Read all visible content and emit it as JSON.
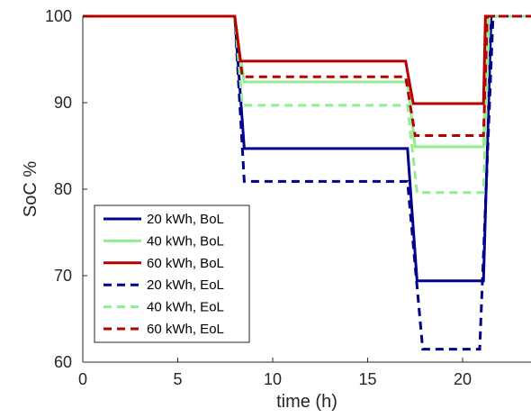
{
  "chart_data": {
    "type": "line",
    "xlabel": "time (h)",
    "ylabel": "SoC %",
    "xlim": [
      0,
      23.6
    ],
    "ylim": [
      60,
      100
    ],
    "xticks": [
      0,
      5,
      10,
      15,
      20
    ],
    "yticks": [
      60,
      70,
      80,
      90,
      100
    ],
    "xtick_labels": [
      "0",
      "5",
      "10",
      "15",
      "20"
    ],
    "ytick_labels": [
      "60",
      "70",
      "80",
      "90",
      "100"
    ],
    "grid": false,
    "legend_position": "bottom-left",
    "series": [
      {
        "name": "20 kWh, BoL",
        "color": "#00008b",
        "dash": "solid",
        "x": [
          0,
          8,
          8.5,
          17.1,
          17.6,
          21.1,
          21.5,
          23.6
        ],
        "y": [
          100,
          100,
          84.7,
          84.7,
          69.4,
          69.4,
          100,
          100
        ]
      },
      {
        "name": "40 kWh, BoL",
        "color": "#90ee90",
        "dash": "solid",
        "x": [
          0,
          8,
          8.5,
          17.1,
          17.5,
          21.1,
          21.3,
          23.6
        ],
        "y": [
          100,
          100,
          92.4,
          92.4,
          84.9,
          84.9,
          100,
          100
        ]
      },
      {
        "name": "60 kWh, BoL",
        "color": "#b80000",
        "dash": "solid",
        "x": [
          0,
          8,
          8.3,
          17,
          17.4,
          21.1,
          21.2,
          23.6
        ],
        "y": [
          100,
          100,
          94.8,
          94.8,
          89.9,
          89.9,
          100,
          100
        ]
      },
      {
        "name": "20 kWh, EoL",
        "color": "#00008b",
        "dash": "dashed",
        "x": [
          0,
          8,
          8.5,
          17.1,
          17.9,
          20.9,
          21.6,
          23.6
        ],
        "y": [
          100,
          100,
          80.9,
          80.9,
          61.5,
          61.5,
          100,
          100
        ]
      },
      {
        "name": "40 kWh, EoL",
        "color": "#90ee90",
        "dash": "dashed",
        "x": [
          0,
          8,
          8.4,
          17.1,
          17.6,
          21.1,
          21.4,
          23.6
        ],
        "y": [
          100,
          100,
          89.7,
          89.7,
          79.6,
          79.6,
          100,
          100
        ]
      },
      {
        "name": "60 kWh, EoL",
        "color": "#b80000",
        "dash": "dashed",
        "x": [
          0,
          8,
          8.4,
          17,
          17.5,
          21.1,
          21.3,
          23.6
        ],
        "y": [
          100,
          100,
          93,
          93,
          86.2,
          86.2,
          100,
          100
        ]
      }
    ]
  }
}
